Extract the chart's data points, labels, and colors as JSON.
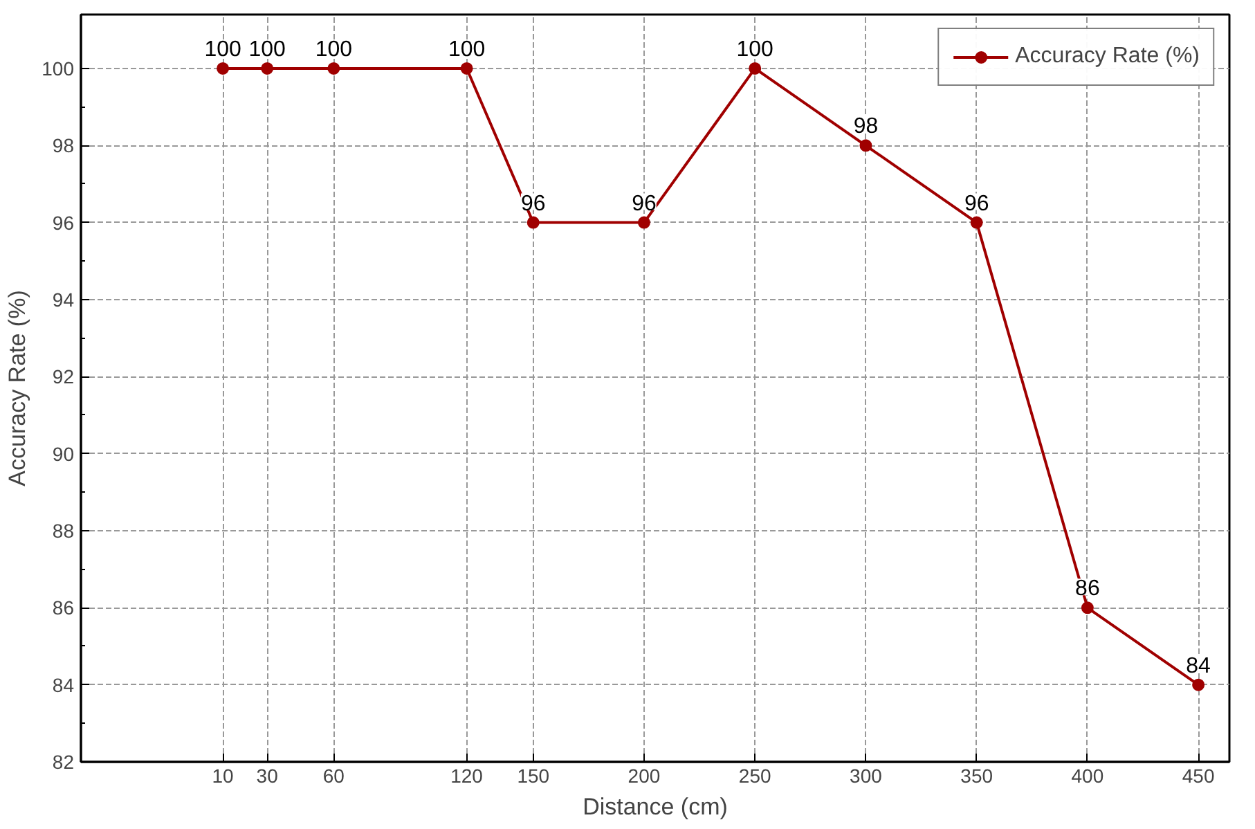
{
  "chart_data": {
    "type": "line",
    "xlabel": "Distance (cm)",
    "ylabel": "Accuracy Rate (%)",
    "x": [
      10,
      30,
      60,
      120,
      150,
      200,
      250,
      300,
      350,
      400,
      450
    ],
    "series": [
      {
        "name": "Accuracy Rate (%)",
        "color": "#a00000",
        "values": [
          100,
          100,
          100,
          100,
          96,
          96,
          100,
          98,
          96,
          86,
          84
        ]
      }
    ],
    "xlim": [
      -54,
      464
    ],
    "ylim": [
      82,
      101.4
    ],
    "xticks": [
      10,
      30,
      60,
      120,
      150,
      200,
      250,
      300,
      350,
      400,
      450
    ],
    "yticks": [
      82,
      84,
      86,
      88,
      90,
      92,
      94,
      96,
      98,
      100
    ],
    "data_labels": true,
    "grid": true,
    "legend": "top right",
    "marker": "circle",
    "line_style": "solid"
  }
}
